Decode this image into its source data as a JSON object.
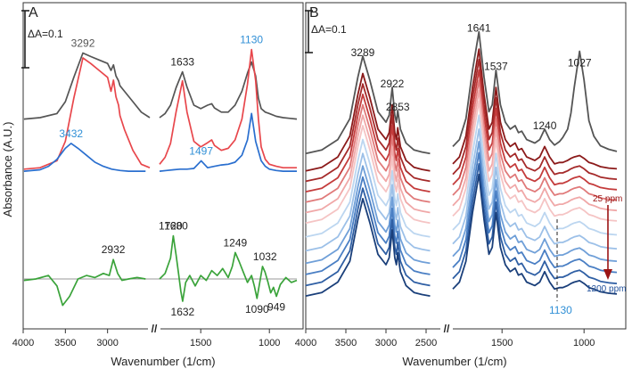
{
  "figure": {
    "ylabel": "Absorbance (A.U.)",
    "colors": {
      "gray": "#555555",
      "red": "#e8474c",
      "blue": "#2a6fcf",
      "green": "#3aa33a",
      "baseline": "#9a9a9a",
      "label_blue": "#2f8fd6",
      "arrow": "#9b1414",
      "ppm_red": "#9b1414",
      "ppm_blue": "#1f4f9a"
    }
  },
  "chart_data": [
    {
      "panel": "A",
      "type": "line",
      "title": "A",
      "xlabel": "Wavenumber (1/cm)",
      "ylabel": "Absorbance (A.U.)",
      "scale_bar": "ΔA=0.1",
      "x_ticks": [
        4000,
        3500,
        3000,
        1500,
        1000
      ],
      "axis_break": "//",
      "series": [
        {
          "name": "gray",
          "color_key": "gray",
          "x": [
            3990,
            3800,
            3600,
            3500,
            3400,
            3292,
            3200,
            3100,
            3000,
            2960,
            2930,
            2900,
            2870,
            2853,
            2800,
            2700,
            2600,
            2500,
            1800,
            1760,
            1720,
            1680,
            1633,
            1600,
            1550,
            1500,
            1450,
            1420,
            1400,
            1350,
            1300,
            1250,
            1200,
            1160,
            1130,
            1100,
            1080,
            1060,
            1030,
            1000,
            950,
            900,
            850,
            800
          ],
          "y": [
            2.3,
            2.32,
            2.38,
            2.55,
            2.9,
            3.25,
            3.2,
            3.15,
            3.1,
            3.0,
            3.08,
            2.92,
            2.85,
            2.78,
            2.7,
            2.55,
            2.4,
            2.32,
            2.32,
            2.38,
            2.5,
            2.75,
            2.98,
            2.76,
            2.5,
            2.45,
            2.5,
            2.52,
            2.46,
            2.4,
            2.4,
            2.5,
            2.7,
            2.96,
            3.12,
            2.92,
            2.6,
            2.45,
            2.4,
            2.38,
            2.34,
            2.32,
            2.31,
            2.3
          ]
        },
        {
          "name": "red",
          "color_key": "red",
          "x": [
            3990,
            3800,
            3600,
            3500,
            3400,
            3292,
            3200,
            3100,
            3000,
            2960,
            2930,
            2900,
            2870,
            2853,
            2800,
            2700,
            2600,
            2500,
            1800,
            1760,
            1720,
            1680,
            1633,
            1600,
            1550,
            1500,
            1450,
            1420,
            1400,
            1350,
            1300,
            1250,
            1200,
            1160,
            1130,
            1100,
            1080,
            1060,
            1030,
            1000,
            950,
            900,
            850,
            800
          ],
          "y": [
            1.58,
            1.6,
            1.7,
            1.98,
            2.6,
            3.18,
            3.1,
            3.0,
            2.9,
            2.7,
            2.86,
            2.62,
            2.5,
            2.35,
            2.15,
            1.85,
            1.65,
            1.6,
            1.65,
            1.75,
            1.95,
            2.4,
            2.85,
            2.4,
            1.98,
            1.9,
            1.96,
            2.0,
            1.92,
            1.85,
            1.88,
            2.0,
            2.3,
            2.8,
            3.3,
            2.85,
            2.3,
            1.9,
            1.72,
            1.65,
            1.62,
            1.6,
            1.6,
            1.6
          ]
        },
        {
          "name": "blue",
          "color_key": "blue",
          "x": [
            3990,
            3800,
            3700,
            3600,
            3500,
            3432,
            3350,
            3250,
            3150,
            3050,
            2950,
            2850,
            2750,
            2650,
            2550,
            1800,
            1750,
            1700,
            1650,
            1600,
            1550,
            1497,
            1450,
            1400,
            1350,
            1300,
            1250,
            1200,
            1160,
            1130,
            1100,
            1060,
            1030,
            1000,
            950,
            900,
            850,
            800
          ],
          "y": [
            1.55,
            1.57,
            1.62,
            1.72,
            1.88,
            1.95,
            1.88,
            1.78,
            1.68,
            1.62,
            1.58,
            1.56,
            1.55,
            1.55,
            1.55,
            1.55,
            1.56,
            1.57,
            1.58,
            1.58,
            1.59,
            1.7,
            1.6,
            1.62,
            1.64,
            1.65,
            1.68,
            1.78,
            2.0,
            2.38,
            1.98,
            1.7,
            1.62,
            1.58,
            1.56,
            1.55,
            1.55,
            1.55
          ]
        },
        {
          "name": "green",
          "color_key": "green",
          "x": [
            3990,
            3850,
            3700,
            3600,
            3532,
            3450,
            3350,
            3250,
            3150,
            3050,
            2980,
            2932,
            2880,
            2830,
            2750,
            2650,
            2550,
            1800,
            1760,
            1720,
            1700,
            1680,
            1660,
            1645,
            1632,
            1610,
            1580,
            1540,
            1500,
            1460,
            1420,
            1380,
            1340,
            1300,
            1270,
            1249,
            1220,
            1190,
            1160,
            1130,
            1110,
            1090,
            1070,
            1050,
            1032,
            1010,
            990,
            970,
            949,
            920,
            880,
            840,
            800
          ],
          "y": [
            -0.02,
            0.0,
            0.05,
            -0.1,
            -0.38,
            -0.25,
            0.0,
            0.05,
            0.02,
            0.08,
            0.05,
            0.28,
            0.08,
            -0.02,
            0.0,
            0.02,
            0.0,
            0.0,
            0.08,
            0.3,
            0.62,
            0.35,
            0.05,
            -0.18,
            -0.32,
            -0.05,
            0.05,
            -0.1,
            0.05,
            -0.02,
            0.12,
            0.05,
            0.15,
            0.02,
            0.18,
            0.38,
            0.25,
            0.1,
            -0.05,
            0.05,
            -0.1,
            -0.28,
            -0.05,
            0.18,
            0.1,
            -0.05,
            -0.2,
            -0.12,
            -0.25,
            -0.08,
            0.02,
            -0.05,
            -0.02
          ]
        }
      ],
      "baseline_y": 0,
      "annotations": [
        {
          "text": "3292",
          "x": 3292,
          "y": 3.25,
          "color_key": "gray"
        },
        {
          "text": "1633",
          "x": 1633,
          "y": 2.98,
          "color_key": "dark"
        },
        {
          "text": "3432",
          "x": 3432,
          "y": 1.95,
          "color_key": "label_blue"
        },
        {
          "text": "1130",
          "x": 1130,
          "y": 3.3,
          "color_key": "label_blue"
        },
        {
          "text": "1497",
          "x": 1497,
          "y": 1.7,
          "color_key": "label_blue"
        },
        {
          "text": "1720",
          "x": 1720,
          "y": 0.62,
          "color_key": "dark"
        },
        {
          "text": "1680",
          "x": 1680,
          "y": 0.62,
          "color_key": "dark"
        },
        {
          "text": "2932",
          "x": 2932,
          "y": 0.28,
          "color_key": "dark"
        },
        {
          "text": "1249",
          "x": 1249,
          "y": 0.38,
          "color_key": "dark"
        },
        {
          "text": "1032",
          "x": 1032,
          "y": 0.18,
          "color_key": "dark"
        },
        {
          "text": "1632",
          "x": 1632,
          "y": -0.32,
          "color_key": "dark"
        },
        {
          "text": "1090",
          "x": 1090,
          "y": -0.28,
          "color_key": "dark"
        },
        {
          "text": "949",
          "x": 949,
          "y": -0.25,
          "color_key": "dark"
        }
      ]
    },
    {
      "panel": "B",
      "type": "line",
      "title": "B",
      "xlabel": "Wavenumber (1/cm)",
      "ylabel": "Absorbance (A.U.)",
      "scale_bar": "ΔA=0.1",
      "x_ticks": [
        4000,
        3500,
        3000,
        2500,
        1500,
        1000
      ],
      "axis_break": "//",
      "series_note": "13 spectra: gray reference, then concentration series from 25 ppm (dark red) to 1200 ppm (dark blue)",
      "series_colors": [
        "#555555",
        "#8b1a1a",
        "#a52a2a",
        "#c43c3c",
        "#e07a7a",
        "#f0a8a8",
        "#f5c4c4",
        "#bcd6f0",
        "#9cc0e8",
        "#6f9fd8",
        "#4a7fc4",
        "#2f5fa4",
        "#1a3f7a"
      ],
      "offsets": [
        2.6,
        2.35,
        2.2,
        2.05,
        1.9,
        1.75,
        1.6,
        1.4,
        1.2,
        1.02,
        0.86,
        0.7,
        0.55
      ],
      "shape": {
        "x": [
          4000,
          3800,
          3600,
          3450,
          3350,
          3289,
          3200,
          3100,
          3000,
          2960,
          2922,
          2890,
          2870,
          2853,
          2820,
          2750,
          2650,
          2550,
          2450,
          1800,
          1760,
          1720,
          1680,
          1641,
          1610,
          1580,
          1560,
          1537,
          1510,
          1480,
          1450,
          1420,
          1400,
          1380,
          1350,
          1300,
          1270,
          1240,
          1210,
          1180,
          1150,
          1130,
          1100,
          1080,
          1060,
          1027,
          1000,
          970,
          940,
          900,
          850,
          800
        ],
        "y": [
          0.0,
          0.05,
          0.2,
          0.5,
          1.1,
          1.4,
          1.05,
          0.6,
          0.45,
          0.55,
          0.95,
          0.55,
          0.45,
          0.62,
          0.35,
          0.15,
          0.05,
          0.02,
          0.0,
          0.1,
          0.2,
          0.5,
          1.2,
          1.75,
          1.1,
          0.6,
          0.7,
          1.2,
          0.7,
          0.45,
          0.35,
          0.4,
          0.3,
          0.32,
          0.2,
          0.15,
          0.2,
          0.35,
          0.2,
          0.1,
          0.12,
          0.12,
          0.15,
          0.18,
          0.2,
          0.22,
          0.18,
          0.12,
          0.1,
          0.06,
          0.04,
          0.03
        ]
      },
      "reference_extra": {
        "x": [
          1200,
          1150,
          1100,
          1080,
          1060,
          1040,
          1027,
          1010,
          990,
          970,
          940,
          900,
          850,
          800
        ],
        "y": [
          0.0,
          0.05,
          0.2,
          0.4,
          0.75,
          1.1,
          1.25,
          1.05,
          0.7,
          0.35,
          0.15,
          0.05,
          0.02,
          0.0
        ]
      },
      "annotations": [
        {
          "text": "3289",
          "x": 3289,
          "y": 4.0
        },
        {
          "text": "2922",
          "x": 2922,
          "y": 3.55
        },
        {
          "text": "2853",
          "x": 2853,
          "y": 3.22
        },
        {
          "text": "1641",
          "x": 1641,
          "y": 4.35
        },
        {
          "text": "1537",
          "x": 1537,
          "y": 3.8
        },
        {
          "text": "1240",
          "x": 1240,
          "y": 2.95
        },
        {
          "text": "1027",
          "x": 1027,
          "y": 3.85
        }
      ],
      "labels": {
        "top_ppm": "25 ppm",
        "bottom_ppm": "1200 ppm",
        "marker": "1130"
      }
    }
  ]
}
